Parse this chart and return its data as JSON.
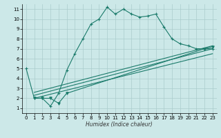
{
  "xlabel": "Humidex (Indice chaleur)",
  "bg_color": "#cce8e8",
  "line_color": "#1a7a6a",
  "grid_color": "#aacccc",
  "xlim": [
    -0.5,
    23.5
  ],
  "ylim": [
    0.5,
    11.5
  ],
  "xticks": [
    0,
    1,
    2,
    3,
    4,
    5,
    6,
    7,
    8,
    9,
    10,
    11,
    12,
    13,
    14,
    15,
    16,
    17,
    18,
    19,
    20,
    21,
    22,
    23
  ],
  "yticks": [
    1,
    2,
    3,
    4,
    5,
    6,
    7,
    8,
    9,
    10,
    11
  ],
  "series1_x": [
    0,
    1,
    2,
    3,
    4,
    5,
    6,
    7,
    8,
    9,
    10,
    11,
    12,
    13,
    14,
    15,
    16,
    17,
    18,
    19,
    20,
    21,
    22,
    23
  ],
  "series1_y": [
    5,
    2,
    2,
    1.2,
    2.5,
    4.8,
    6.5,
    8.0,
    9.5,
    10.0,
    11.2,
    10.5,
    11.0,
    10.5,
    10.2,
    10.3,
    10.5,
    9.2,
    8.0,
    7.5,
    7.3,
    7.0,
    7.0,
    7.0
  ],
  "series2_x": [
    1,
    2,
    3,
    4,
    5,
    22,
    23
  ],
  "series2_y": [
    2,
    2,
    2,
    1.5,
    2.5,
    7.0,
    7.2
  ],
  "series3_x": [
    1,
    23
  ],
  "series3_y": [
    2.0,
    6.5
  ],
  "series4_x": [
    1,
    23
  ],
  "series4_y": [
    2.3,
    7.0
  ],
  "series5_x": [
    1,
    23
  ],
  "series5_y": [
    2.6,
    7.3
  ],
  "xlabel_fontsize": 5.5,
  "tick_fontsize": 5.0
}
